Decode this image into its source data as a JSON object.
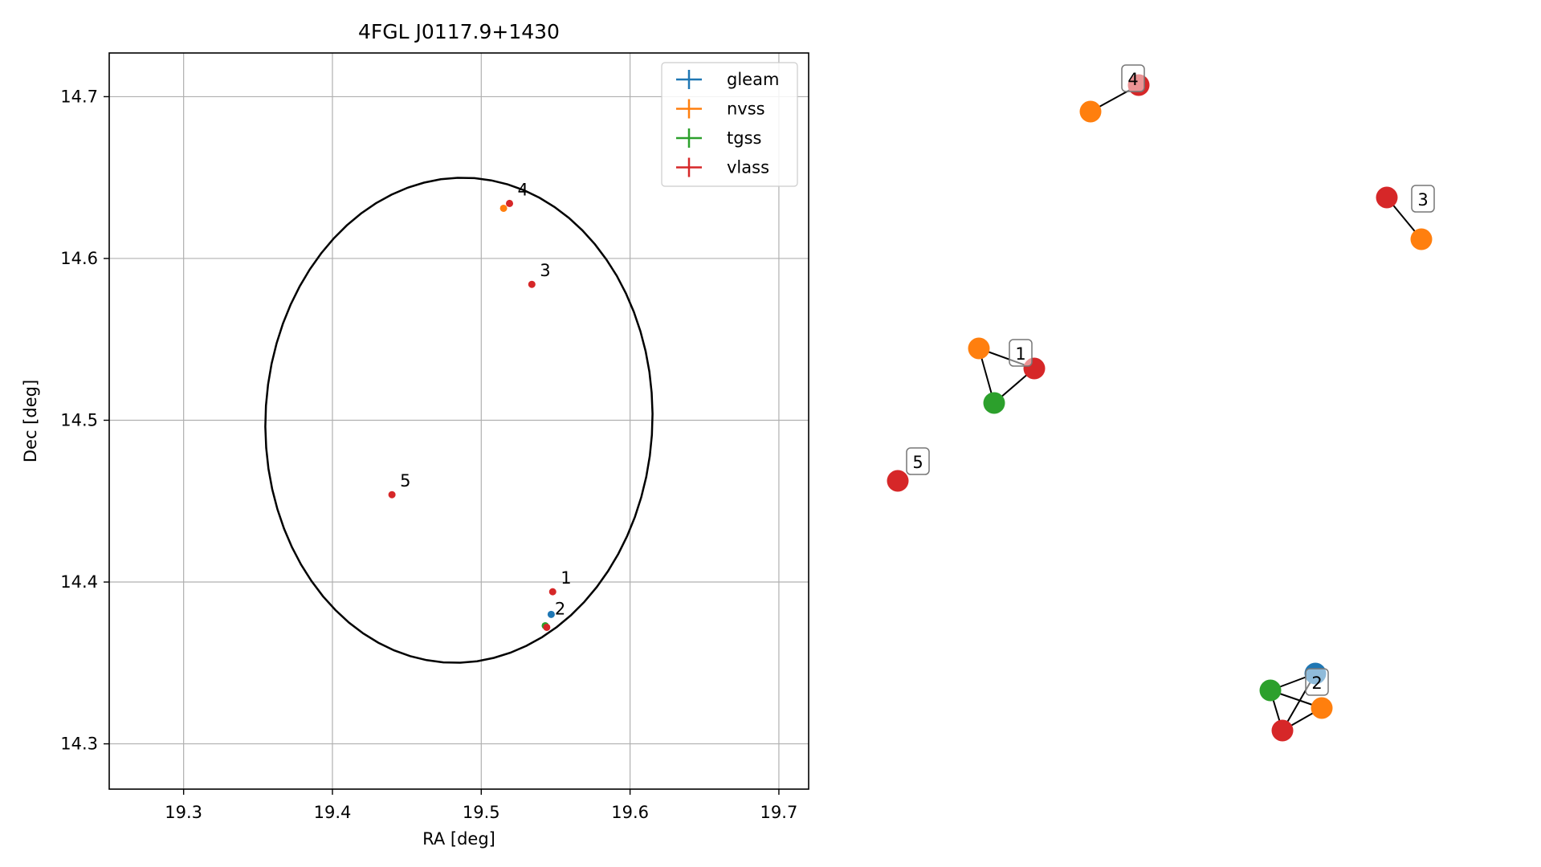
{
  "chart_data": [
    {
      "type": "scatter",
      "title": "4FGL J0117.9+1430",
      "xlabel": "RA [deg]",
      "ylabel": "Dec [deg]",
      "xlim": [
        19.25,
        19.72
      ],
      "ylim": [
        14.272,
        14.727
      ],
      "xticks": [
        19.3,
        19.4,
        19.5,
        19.6,
        19.7
      ],
      "yticks": [
        14.3,
        14.4,
        14.5,
        14.6,
        14.7
      ],
      "grid": true,
      "legend_position": "top-right",
      "ellipse": {
        "center": [
          19.485,
          14.5
        ],
        "semi_major_ra": 0.13,
        "semi_minor_dec": 0.15,
        "angle_deg": -4
      },
      "series": [
        {
          "name": "gleam",
          "color": "#1f77b4",
          "points": [
            {
              "x": 19.547,
              "y": 14.38
            }
          ]
        },
        {
          "name": "nvss",
          "color": "#ff7f0e",
          "points": [
            {
              "x": 19.515,
              "y": 14.631
            }
          ]
        },
        {
          "name": "tgss",
          "color": "#2ca02c",
          "points": [
            {
              "x": 19.543,
              "y": 14.373
            }
          ]
        },
        {
          "name": "vlass",
          "color": "#d62728",
          "points": [
            {
              "x": 19.548,
              "y": 14.394
            },
            {
              "x": 19.544,
              "y": 14.372
            },
            {
              "x": 19.534,
              "y": 14.584
            },
            {
              "x": 19.519,
              "y": 14.634
            },
            {
              "x": 19.44,
              "y": 14.454
            }
          ]
        }
      ],
      "annotations": [
        {
          "text": "1",
          "x": 19.548,
          "y": 14.394
        },
        {
          "text": "2",
          "x": 19.544,
          "y": 14.375
        },
        {
          "text": "3",
          "x": 19.534,
          "y": 14.584
        },
        {
          "text": "4",
          "x": 19.519,
          "y": 14.634
        },
        {
          "text": "5",
          "x": 19.44,
          "y": 14.454
        }
      ]
    },
    {
      "type": "network",
      "groups": [
        {
          "label": "1",
          "nodes": [
            "nvss",
            "tgss",
            "vlass"
          ],
          "edges": [
            [
              "nvss",
              "tgss"
            ],
            [
              "tgss",
              "vlass"
            ],
            [
              "nvss",
              "vlass"
            ]
          ]
        },
        {
          "label": "2",
          "nodes": [
            "gleam",
            "tgss",
            "nvss",
            "vlass"
          ],
          "edges": [
            [
              "tgss",
              "gleam"
            ],
            [
              "tgss",
              "nvss"
            ],
            [
              "tgss",
              "vlass"
            ],
            [
              "vlass",
              "nvss"
            ],
            [
              "vlass",
              "gleam"
            ]
          ]
        },
        {
          "label": "3",
          "nodes": [
            "vlass",
            "nvss"
          ],
          "edges": [
            [
              "vlass",
              "nvss"
            ]
          ]
        },
        {
          "label": "4",
          "nodes": [
            "nvss",
            "vlass"
          ],
          "edges": [
            [
              "nvss",
              "vlass"
            ]
          ]
        },
        {
          "label": "5",
          "nodes": [
            "vlass"
          ],
          "edges": []
        }
      ]
    }
  ]
}
